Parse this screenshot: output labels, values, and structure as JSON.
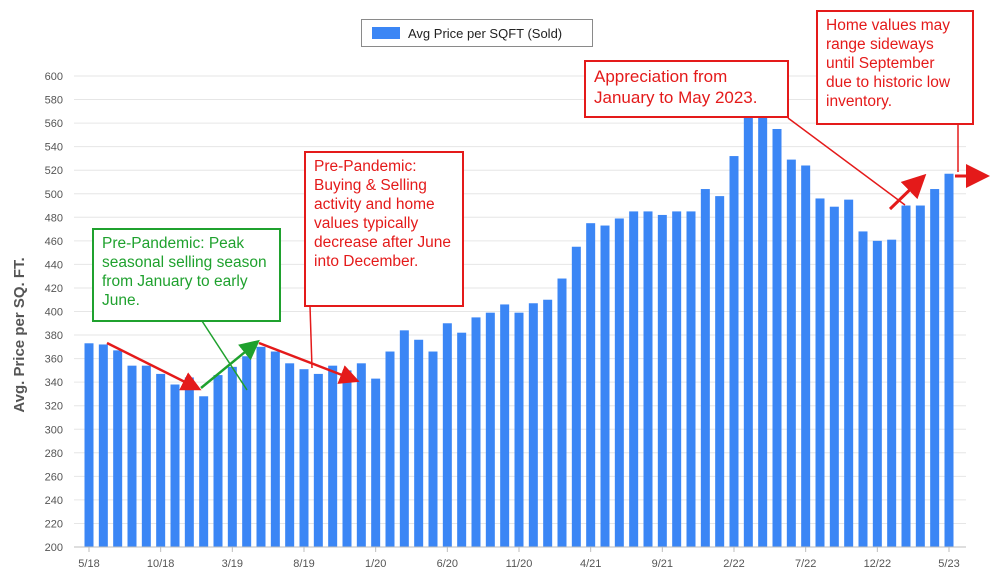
{
  "chart_data": {
    "type": "bar",
    "title": "",
    "ylabel": "Avg. Price per SQ. FT.",
    "xlabel": "",
    "ylim": [
      200,
      600
    ],
    "yticks": [
      200,
      220,
      240,
      260,
      280,
      300,
      320,
      340,
      360,
      380,
      400,
      420,
      440,
      460,
      480,
      500,
      520,
      540,
      560,
      580,
      600
    ],
    "legend": {
      "label": "Avg Price per SQFT (Sold)",
      "position": "top-center"
    },
    "bar_color": "#3b86f5",
    "x_tick_labels": [
      {
        "index": 0,
        "label": "5/18"
      },
      {
        "index": 5,
        "label": "10/18"
      },
      {
        "index": 10,
        "label": "3/19"
      },
      {
        "index": 15,
        "label": "8/19"
      },
      {
        "index": 20,
        "label": "1/20"
      },
      {
        "index": 25,
        "label": "6/20"
      },
      {
        "index": 30,
        "label": "11/20"
      },
      {
        "index": 35,
        "label": "4/21"
      },
      {
        "index": 40,
        "label": "9/21"
      },
      {
        "index": 45,
        "label": "2/22"
      },
      {
        "index": 50,
        "label": "7/22"
      },
      {
        "index": 55,
        "label": "12/22"
      },
      {
        "index": 60,
        "label": "5/23"
      }
    ],
    "values": [
      373,
      372,
      367,
      354,
      354,
      347,
      338,
      344,
      328,
      346,
      353,
      362,
      370,
      366,
      356,
      351,
      347,
      354,
      350,
      356,
      343,
      366,
      384,
      376,
      366,
      390,
      382,
      395,
      399,
      406,
      399,
      407,
      410,
      428,
      455,
      475,
      473,
      479,
      485,
      485,
      482,
      485,
      485,
      504,
      498,
      532,
      572,
      567,
      555,
      529,
      524,
      496,
      489,
      495,
      468,
      460,
      461,
      490,
      490,
      504,
      517
    ]
  },
  "annotations": {
    "peak": "Pre-Pandemic:  Peak seasonal selling season from January to early June.",
    "decrease": "Pre-Pandemic: Buying & Selling activity and home values typically decrease after June into December.",
    "appreciation": "Appreciation from January to May 2023.",
    "sideways": "Home values may range sideways until September due to historic low inventory."
  },
  "colors": {
    "annotation_red": "#e41a1a",
    "annotation_green": "#1fa12e",
    "bar": "#3b86f5"
  }
}
